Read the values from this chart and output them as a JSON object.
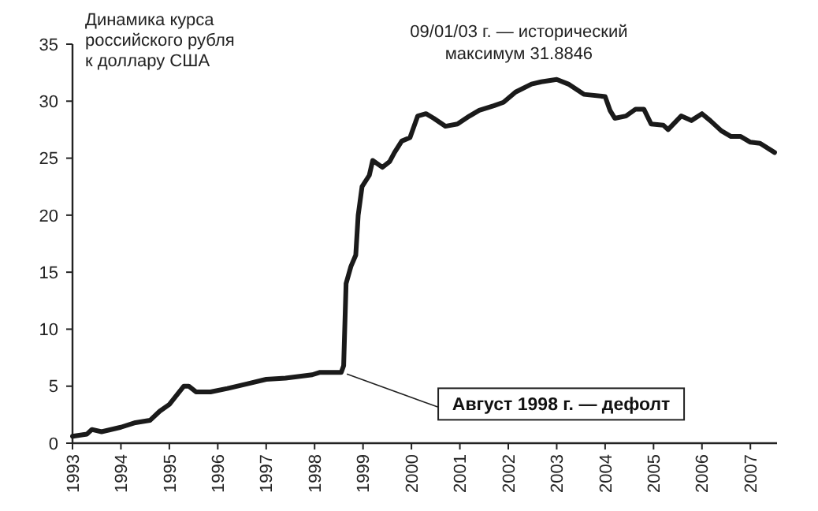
{
  "chart_data": {
    "type": "line",
    "title": "Динамика курса российского рубля к доллару США",
    "x": [
      1993.0,
      1993.3,
      1993.4,
      1993.6,
      1994.0,
      1994.3,
      1994.6,
      1994.8,
      1995.0,
      1995.3,
      1995.4,
      1995.55,
      1995.85,
      1996.2,
      1996.6,
      1997.0,
      1997.4,
      1997.95,
      1998.1,
      1998.55,
      1998.6,
      1998.65,
      1998.75,
      1998.85,
      1998.9,
      1998.98,
      1999.13,
      1999.2,
      1999.4,
      1999.55,
      1999.65,
      1999.8,
      1999.97,
      2000.13,
      2000.3,
      2000.46,
      2000.7,
      2000.95,
      2001.2,
      2001.4,
      2001.7,
      2001.9,
      2002.15,
      2002.48,
      2002.68,
      2003.0,
      2003.24,
      2003.56,
      2004.0,
      2004.1,
      2004.2,
      2004.43,
      2004.63,
      2004.8,
      2004.95,
      2005.2,
      2005.3,
      2005.57,
      2005.78,
      2006.0,
      2006.17,
      2006.4,
      2006.6,
      2006.8,
      2007.0,
      2007.2,
      2007.5
    ],
    "series": [
      {
        "color": "#1a1a1a",
        "values": [
          0.6,
          0.8,
          1.2,
          1.0,
          1.4,
          1.8,
          2.0,
          2.8,
          3.4,
          5.0,
          5.0,
          4.5,
          4.5,
          4.8,
          5.2,
          5.6,
          5.7,
          6.0,
          6.2,
          6.2,
          6.8,
          14.0,
          15.5,
          16.5,
          20.0,
          22.5,
          23.5,
          24.8,
          24.2,
          24.7,
          25.5,
          26.5,
          26.8,
          28.7,
          28.9,
          28.5,
          27.8,
          28.0,
          28.7,
          29.2,
          29.6,
          29.9,
          30.8,
          31.5,
          31.7,
          31.9,
          31.5,
          30.6,
          30.4,
          29.2,
          28.5,
          28.7,
          29.3,
          29.3,
          28.0,
          27.9,
          27.5,
          28.7,
          28.3,
          28.9,
          28.3,
          27.4,
          26.9,
          26.9,
          26.4,
          26.3,
          25.5
        ]
      }
    ],
    "xlim": [
      1993,
      2007.55
    ],
    "xticks": [
      1993,
      1994,
      1995,
      1996,
      1997,
      1998,
      1999,
      2000,
      2001,
      2002,
      2003,
      2004,
      2005,
      2006,
      2007
    ],
    "ylim": [
      0,
      35
    ],
    "yticks": [
      0,
      5,
      10,
      15,
      20,
      25,
      30,
      35
    ],
    "grid": false,
    "line_style": "solid",
    "annotations": [
      {
        "text": "09/01/03 г. — исторический максимум 31.8846",
        "x": 2003.0,
        "y": 31.8846
      },
      {
        "text": "Август 1998 г. — дефолт",
        "x": 1998.6,
        "y": 6.2
      }
    ]
  }
}
